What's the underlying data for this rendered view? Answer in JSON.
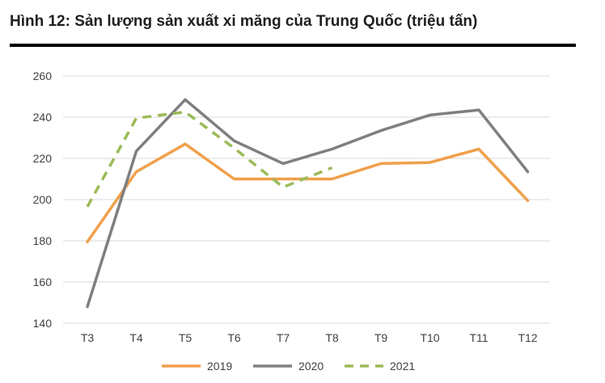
{
  "title": "Hình 12: Sản lượng sản xuất xi măng của Trung Quốc (triệu tấn)",
  "chart_data": {
    "type": "line",
    "categories": [
      "T3",
      "T4",
      "T5",
      "T6",
      "T7",
      "T8",
      "T9",
      "T10",
      "T11",
      "T12"
    ],
    "ylim": [
      140,
      260
    ],
    "yticks": [
      140,
      160,
      180,
      200,
      220,
      240,
      260
    ],
    "grid": true,
    "legend_position": "bottom",
    "series": [
      {
        "name": "2019",
        "color": "#f0a04b",
        "dash": "solid",
        "values": [
          179.5,
          213.5,
          227,
          210,
          210,
          210,
          217.5,
          218,
          224.5,
          199.5
        ]
      },
      {
        "name": "2020",
        "color": "#7f7f7f",
        "dash": "solid",
        "values": [
          148,
          223.5,
          248.5,
          228.5,
          217.5,
          224.5,
          233.5,
          241,
          243.5,
          213.5
        ]
      },
      {
        "name": "2021",
        "color": "#9bbb59",
        "dash": "dashed",
        "values": [
          196.5,
          239.5,
          242.5,
          225,
          206,
          215.5,
          null,
          null,
          null,
          null
        ]
      }
    ]
  }
}
